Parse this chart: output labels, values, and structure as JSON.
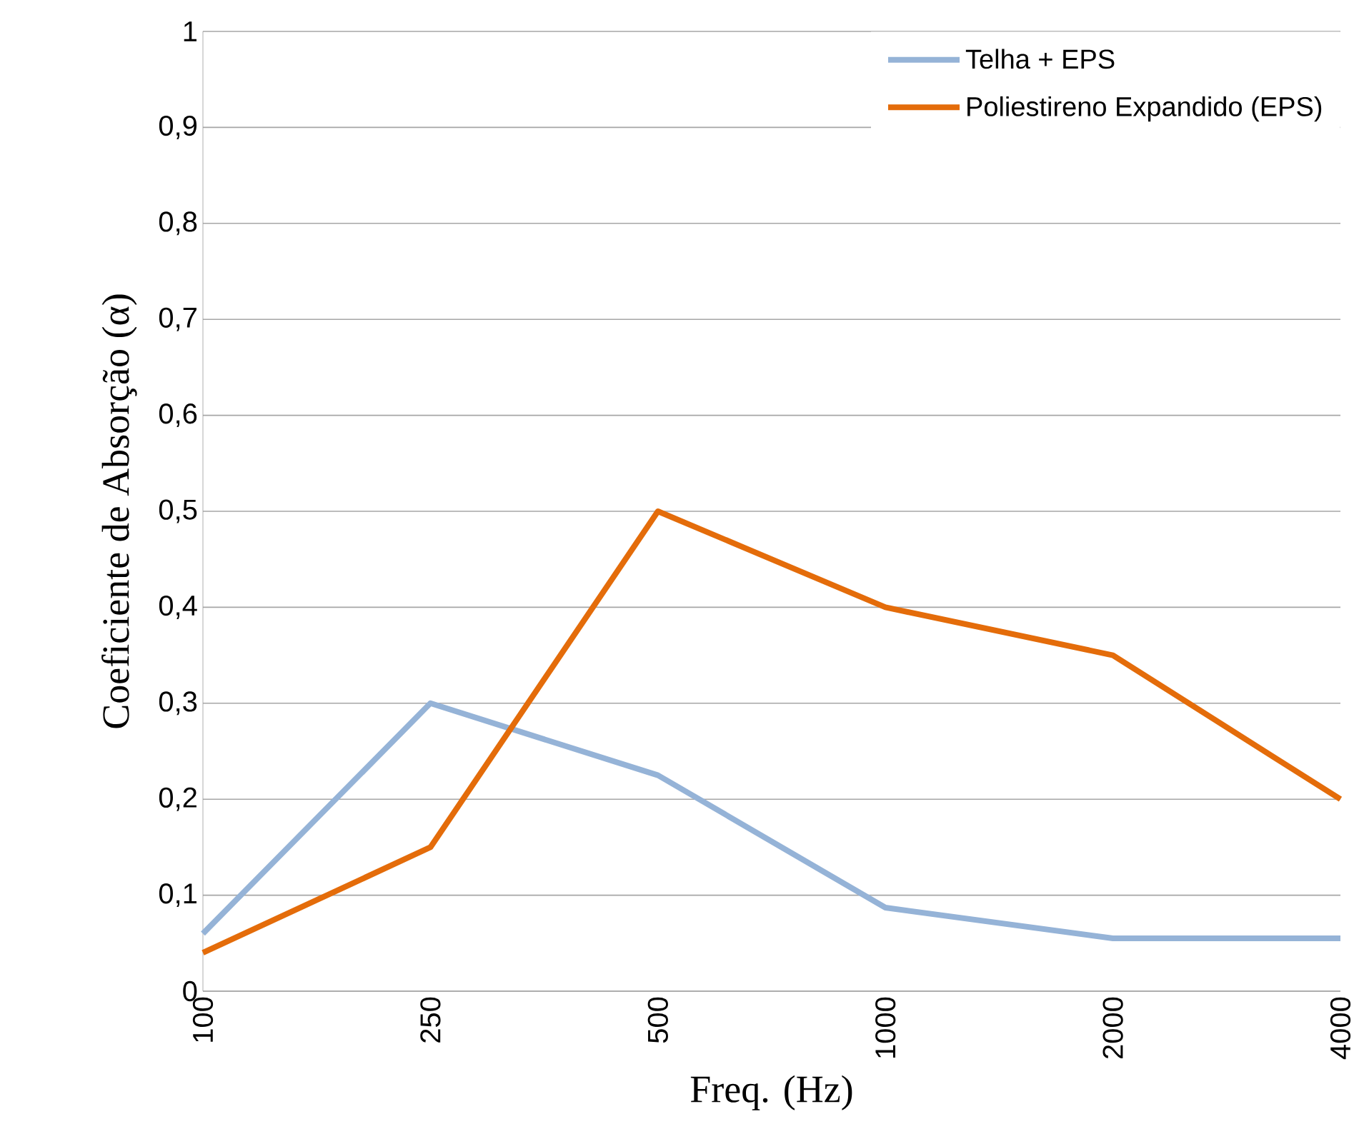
{
  "chart_data": {
    "type": "line",
    "xlabel": "Freq. (Hz)",
    "ylabel": "Coeficiente de Absorção (α)",
    "categories": [
      "100",
      "250",
      "500",
      "1000",
      "2000",
      "4000"
    ],
    "series": [
      {
        "name": "Telha + EPS",
        "color": "#95b3d7",
        "values": [
          0.06,
          0.3,
          0.225,
          0.087,
          0.055,
          0.055
        ]
      },
      {
        "name": "Poliestireno Expandido (EPS)",
        "color": "#e46c0a",
        "values": [
          0.04,
          0.15,
          0.5,
          0.4,
          0.35,
          0.2
        ]
      }
    ],
    "ylim": [
      0,
      1
    ],
    "yticks": [
      0,
      {
        "value": 0.1,
        "label": "0,1"
      },
      {
        "value": 0.2,
        "label": "0,2"
      },
      {
        "value": 0.3,
        "label": "0,3"
      },
      {
        "value": 0.4,
        "label": "0,4"
      },
      {
        "value": 0.5,
        "label": "0,5"
      },
      {
        "value": 0.6,
        "label": "0,6"
      },
      {
        "value": 0.7,
        "label": "0,7"
      },
      {
        "value": 0.8,
        "label": "0,8"
      },
      {
        "value": 0.9,
        "label": "0,9"
      },
      1
    ],
    "grid": "y",
    "legend": "top right",
    "marker": "none",
    "line_style": "solid"
  }
}
